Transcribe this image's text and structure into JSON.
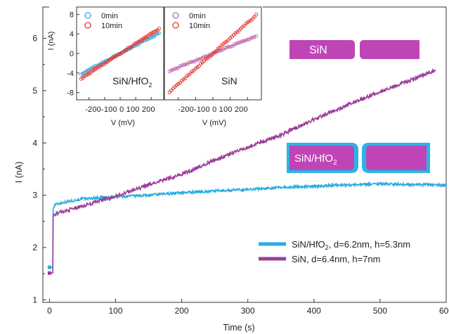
{
  "chart_data": [
    {
      "type": "line",
      "xlabel": "Time (s)",
      "ylabel": "I (nA)",
      "xlim": [
        -10,
        600
      ],
      "ylim": [
        0.95,
        6.6
      ],
      "xticks": [
        0,
        100,
        200,
        300,
        400,
        500,
        600
      ],
      "yticks": [
        1,
        2,
        3,
        4,
        5,
        6
      ],
      "colors": {
        "sin_hfo2": "#29abe2",
        "sin": "#9b3d9a",
        "pore_fill": "#bf45b6",
        "pore_coat": "#29b4e8"
      },
      "series": [
        {
          "name_main": "SiN/HfO",
          "name_sub": "2",
          "name_rest": ", d=6.2nm, h=5.3nm",
          "color": "#29abe2",
          "x": [
            0,
            4,
            5,
            5.5,
            8,
            20,
            50,
            100,
            150,
            200,
            250,
            300,
            350,
            400,
            450,
            500,
            550,
            580,
            600
          ],
          "y": [
            1.62,
            1.62,
            1.62,
            2.72,
            2.82,
            2.86,
            2.93,
            2.97,
            3.0,
            3.05,
            3.08,
            3.11,
            3.15,
            3.17,
            3.2,
            3.22,
            3.2,
            3.2,
            3.18
          ]
        },
        {
          "name_main": "SiN, d=6.4nm, h=7nm",
          "color": "#9b3d9a",
          "x": [
            0,
            4,
            5,
            5.5,
            10,
            30,
            60,
            100,
            150,
            200,
            250,
            300,
            350,
            400,
            450,
            500,
            550,
            585
          ],
          "y": [
            1.51,
            1.51,
            1.51,
            2.6,
            2.65,
            2.72,
            2.83,
            2.98,
            3.2,
            3.4,
            3.67,
            3.92,
            4.15,
            4.45,
            4.72,
            4.98,
            5.22,
            5.4
          ]
        }
      ],
      "labels": {
        "sin_pore": "SiN",
        "coated_pore_main": "SiN/HfO",
        "coated_pore_sub": "2"
      }
    },
    {
      "type": "scatter",
      "xlabel": "V (mV)",
      "ylabel": "I (nA)",
      "xlim": [
        -280,
        280
      ],
      "ylim": [
        -9.5,
        9.5
      ],
      "xtick_labels": [
        "-200",
        "-100",
        "0",
        "100",
        "200"
      ],
      "yticks": [
        -8,
        -4,
        0,
        4,
        8
      ],
      "label_main": "SiN/HfO",
      "label_sub": "2",
      "series": [
        {
          "name": "0min",
          "color": "#29abe2",
          "slope": 0.0167,
          "x_range": [
            -250,
            250
          ]
        },
        {
          "name": "10min",
          "color": "#e8332a",
          "slope": 0.0203,
          "x_range": [
            -250,
            250
          ]
        }
      ]
    },
    {
      "type": "scatter",
      "xlabel": "V (mV)",
      "xlim": [
        -280,
        280
      ],
      "ylim": [
        -9.5,
        9.5
      ],
      "xtick_labels": [
        "-200",
        "-100",
        "0",
        "100",
        "200"
      ],
      "label": "SiN",
      "series": [
        {
          "name": "0min",
          "color": "#b86bb8",
          "slope": 0.0143,
          "x_range": [
            -250,
            250
          ]
        },
        {
          "name": "10min",
          "color": "#e8332a",
          "slope": 0.0314,
          "x_range": [
            -250,
            250
          ]
        }
      ]
    }
  ]
}
